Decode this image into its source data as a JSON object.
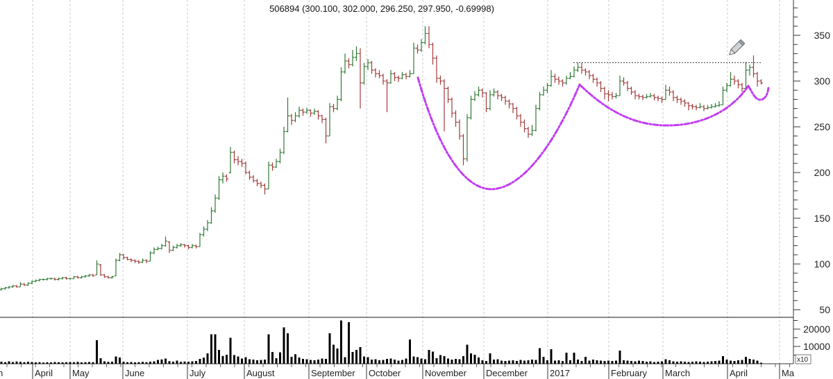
{
  "chart_data": {
    "type": "ohlc",
    "title": "506894 (300.100, 302.000, 296.250, 297.950, -0.69998)",
    "symbol": "506894",
    "last_bar": {
      "open": 300.1,
      "high": 302.0,
      "low": 296.25,
      "close": 297.95,
      "change": -0.69998
    },
    "ylim": [
      40,
      380
    ],
    "y_ticks": [
      50,
      100,
      150,
      200,
      250,
      300,
      350
    ],
    "volume_ylim": [
      0,
      26000
    ],
    "volume_ticks": [
      10000,
      20000
    ],
    "volume_multiplier_label": "x10",
    "x_ticks": [
      "h",
      "April",
      "May",
      "June",
      "July",
      "August",
      "September",
      "October",
      "November",
      "December",
      "2017",
      "February",
      "March",
      "April",
      "Ma"
    ],
    "grid": "vertical dashed at month starts",
    "colors": {
      "up": "#2f7a34",
      "down": "#a33a3a",
      "volume": "#000000",
      "annotation": "#c23df2"
    },
    "annotations": {
      "resistance_level": 320,
      "pattern": "cup and handle (hand drawn dash-dot curves)",
      "icon": "pencil-icon"
    },
    "bars": [
      [
        72,
        74,
        71,
        73
      ],
      [
        73,
        75,
        72,
        74
      ],
      [
        74,
        76,
        73,
        75
      ],
      [
        75,
        77,
        74,
        76
      ],
      [
        76,
        77,
        74,
        75
      ],
      [
        75,
        80,
        75,
        78
      ],
      [
        78,
        79,
        76,
        77
      ],
      [
        77,
        80,
        76,
        79
      ],
      [
        79,
        82,
        78,
        81
      ],
      [
        81,
        83,
        80,
        82
      ],
      [
        82,
        84,
        81,
        83
      ],
      [
        83,
        84,
        82,
        83
      ],
      [
        83,
        85,
        82,
        84
      ],
      [
        84,
        85,
        83,
        84
      ],
      [
        84,
        85,
        82,
        83
      ],
      [
        83,
        85,
        82,
        84
      ],
      [
        84,
        86,
        83,
        85
      ],
      [
        85,
        86,
        83,
        84
      ],
      [
        84,
        85,
        83,
        84
      ],
      [
        84,
        87,
        84,
        86
      ],
      [
        86,
        87,
        84,
        85
      ],
      [
        85,
        87,
        84,
        86
      ],
      [
        86,
        88,
        85,
        87
      ],
      [
        87,
        89,
        86,
        88
      ],
      [
        88,
        89,
        86,
        87
      ],
      [
        88,
        104,
        88,
        100
      ],
      [
        99,
        100,
        87,
        88
      ],
      [
        88,
        89,
        85,
        86
      ],
      [
        86,
        87,
        84,
        85
      ],
      [
        85,
        87,
        84,
        86
      ],
      [
        87,
        106,
        87,
        104
      ],
      [
        104,
        112,
        103,
        110
      ],
      [
        110,
        111,
        105,
        107
      ],
      [
        107,
        108,
        104,
        105
      ],
      [
        105,
        106,
        102,
        104
      ],
      [
        104,
        105,
        101,
        103
      ],
      [
        103,
        104,
        100,
        102
      ],
      [
        102,
        106,
        101,
        104
      ],
      [
        104,
        105,
        101,
        103
      ],
      [
        103,
        114,
        103,
        112
      ],
      [
        112,
        118,
        111,
        116
      ],
      [
        116,
        119,
        115,
        117
      ],
      [
        117,
        122,
        116,
        120
      ],
      [
        120,
        130,
        119,
        125
      ],
      [
        124,
        125,
        112,
        115
      ],
      [
        115,
        120,
        114,
        118
      ],
      [
        118,
        122,
        117,
        120
      ],
      [
        120,
        123,
        119,
        121
      ],
      [
        121,
        122,
        118,
        120
      ],
      [
        120,
        121,
        116,
        118
      ],
      [
        118,
        122,
        117,
        120
      ],
      [
        120,
        121,
        117,
        119
      ],
      [
        119,
        134,
        119,
        132
      ],
      [
        132,
        141,
        130,
        138
      ],
      [
        138,
        148,
        136,
        145
      ],
      [
        145,
        162,
        144,
        158
      ],
      [
        158,
        176,
        156,
        172
      ],
      [
        172,
        196,
        170,
        192
      ],
      [
        192,
        200,
        188,
        196
      ],
      [
        196,
        198,
        190,
        193
      ],
      [
        200,
        228,
        199,
        222
      ],
      [
        222,
        224,
        210,
        214
      ],
      [
        214,
        218,
        208,
        212
      ],
      [
        212,
        215,
        206,
        210
      ],
      [
        210,
        212,
        198,
        200
      ],
      [
        200,
        202,
        192,
        195
      ],
      [
        195,
        197,
        189,
        191
      ],
      [
        191,
        193,
        185,
        188
      ],
      [
        188,
        190,
        183,
        186
      ],
      [
        186,
        188,
        176,
        182
      ],
      [
        182,
        212,
        182,
        208
      ],
      [
        208,
        211,
        202,
        206
      ],
      [
        206,
        215,
        205,
        212
      ],
      [
        212,
        226,
        210,
        222
      ],
      [
        222,
        250,
        220,
        245
      ],
      [
        245,
        282,
        244,
        262
      ],
      [
        262,
        264,
        252,
        257
      ],
      [
        257,
        266,
        255,
        262
      ],
      [
        262,
        272,
        260,
        268
      ],
      [
        268,
        270,
        262,
        266
      ],
      [
        266,
        271,
        264,
        268
      ],
      [
        268,
        269,
        261,
        265
      ],
      [
        265,
        270,
        263,
        267
      ],
      [
        267,
        268,
        258,
        262
      ],
      [
        262,
        263,
        254,
        258
      ],
      [
        258,
        260,
        232,
        240
      ],
      [
        240,
        276,
        240,
        272
      ],
      [
        272,
        275,
        266,
        270
      ],
      [
        270,
        284,
        268,
        280
      ],
      [
        280,
        315,
        278,
        310
      ],
      [
        310,
        330,
        308,
        322
      ],
      [
        322,
        325,
        314,
        318
      ],
      [
        318,
        334,
        316,
        326
      ],
      [
        326,
        338,
        322,
        330
      ],
      [
        330,
        336,
        270,
        298
      ],
      [
        298,
        320,
        296,
        316
      ],
      [
        316,
        324,
        312,
        320
      ],
      [
        320,
        322,
        308,
        312
      ],
      [
        312,
        314,
        304,
        308
      ],
      [
        308,
        312,
        303,
        306
      ],
      [
        306,
        308,
        296,
        300
      ],
      [
        300,
        302,
        266,
        298
      ],
      [
        298,
        312,
        297,
        308
      ],
      [
        308,
        310,
        300,
        304
      ],
      [
        304,
        306,
        299,
        303
      ],
      [
        303,
        310,
        302,
        307
      ],
      [
        307,
        309,
        302,
        305
      ],
      [
        305,
        312,
        304,
        308
      ],
      [
        308,
        342,
        308,
        336
      ],
      [
        336,
        340,
        330,
        334
      ],
      [
        334,
        346,
        332,
        342
      ],
      [
        342,
        360,
        340,
        352
      ],
      [
        352,
        360,
        336,
        340
      ],
      [
        340,
        342,
        318,
        325
      ],
      [
        325,
        328,
        298,
        303
      ],
      [
        303,
        306,
        296,
        300
      ],
      [
        300,
        302,
        245,
        292
      ],
      [
        292,
        294,
        276,
        280
      ],
      [
        280,
        282,
        260,
        265
      ],
      [
        265,
        268,
        250,
        255
      ],
      [
        255,
        258,
        236,
        240
      ],
      [
        240,
        242,
        208,
        215
      ],
      [
        215,
        264,
        212,
        260
      ],
      [
        260,
        284,
        258,
        280
      ],
      [
        280,
        289,
        278,
        285
      ],
      [
        285,
        294,
        283,
        290
      ],
      [
        290,
        292,
        282,
        287
      ],
      [
        287,
        288,
        266,
        270
      ],
      [
        270,
        290,
        268,
        285
      ],
      [
        285,
        292,
        283,
        288
      ],
      [
        288,
        290,
        280,
        284
      ],
      [
        284,
        286,
        278,
        282
      ],
      [
        282,
        284,
        274,
        278
      ],
      [
        278,
        280,
        270,
        275
      ],
      [
        275,
        276,
        265,
        270
      ],
      [
        270,
        272,
        258,
        262
      ],
      [
        262,
        264,
        250,
        255
      ],
      [
        255,
        258,
        244,
        248
      ],
      [
        248,
        250,
        238,
        242
      ],
      [
        242,
        252,
        240,
        246
      ],
      [
        246,
        274,
        245,
        270
      ],
      [
        270,
        288,
        268,
        285
      ],
      [
        285,
        294,
        284,
        290
      ],
      [
        290,
        298,
        287,
        295
      ],
      [
        295,
        312,
        294,
        305
      ],
      [
        305,
        308,
        298,
        302
      ],
      [
        302,
        305,
        296,
        300
      ],
      [
        300,
        302,
        294,
        298
      ],
      [
        298,
        306,
        296,
        303
      ],
      [
        303,
        310,
        302,
        305
      ],
      [
        305,
        316,
        304,
        312
      ],
      [
        312,
        320,
        310,
        315
      ],
      [
        315,
        320,
        308,
        312
      ],
      [
        312,
        314,
        306,
        310
      ],
      [
        310,
        312,
        302,
        306
      ],
      [
        306,
        308,
        298,
        302
      ],
      [
        302,
        304,
        294,
        298
      ],
      [
        298,
        300,
        288,
        292
      ],
      [
        292,
        294,
        280,
        286
      ],
      [
        286,
        290,
        278,
        285
      ],
      [
        285,
        288,
        280,
        283
      ],
      [
        283,
        287,
        281,
        284
      ],
      [
        284,
        306,
        284,
        300
      ],
      [
        300,
        304,
        295,
        298
      ],
      [
        298,
        300,
        289,
        292
      ],
      [
        292,
        294,
        285,
        288
      ],
      [
        288,
        290,
        280,
        284
      ],
      [
        284,
        286,
        280,
        283
      ],
      [
        283,
        285,
        279,
        282
      ],
      [
        282,
        286,
        281,
        283
      ],
      [
        283,
        287,
        282,
        284
      ],
      [
        284,
        286,
        279,
        282
      ],
      [
        282,
        284,
        278,
        281
      ],
      [
        281,
        283,
        276,
        280
      ],
      [
        280,
        296,
        280,
        290
      ],
      [
        290,
        294,
        284,
        288
      ],
      [
        288,
        290,
        278,
        282
      ],
      [
        282,
        284,
        276,
        280
      ],
      [
        280,
        282,
        274,
        278
      ],
      [
        278,
        280,
        272,
        276
      ],
      [
        276,
        277,
        268,
        273
      ],
      [
        273,
        275,
        269,
        272
      ],
      [
        272,
        274,
        268,
        271
      ],
      [
        271,
        276,
        270,
        272
      ],
      [
        272,
        274,
        267,
        270
      ],
      [
        270,
        274,
        269,
        271
      ],
      [
        271,
        275,
        270,
        272
      ],
      [
        272,
        276,
        271,
        273
      ],
      [
        273,
        278,
        272,
        274
      ],
      [
        274,
        294,
        274,
        290
      ],
      [
        290,
        298,
        288,
        295
      ],
      [
        295,
        310,
        294,
        302
      ],
      [
        302,
        306,
        296,
        300
      ],
      [
        300,
        302,
        292,
        296
      ],
      [
        296,
        298,
        288,
        292
      ],
      [
        292,
        321,
        291,
        312
      ],
      [
        312,
        318,
        306,
        315
      ],
      [
        315,
        328,
        304,
        308
      ],
      [
        308,
        310,
        294,
        300
      ],
      [
        300.1,
        302,
        296.25,
        297.95
      ]
    ],
    "volume": [
      1200,
      900,
      1400,
      1000,
      1300,
      1100,
      900,
      1200,
      1000,
      800,
      900,
      700,
      900,
      800,
      1000,
      900,
      800,
      900,
      1000,
      900,
      1100,
      800,
      900,
      1000,
      900,
      13600,
      3200,
      1400,
      1100,
      1200,
      4200,
      3600,
      1200,
      900,
      1000,
      800,
      900,
      1100,
      900,
      1200,
      1400,
      2200,
      2500,
      3000,
      1500,
      1200,
      1800,
      1100,
      1300,
      1200,
      1400,
      1600,
      2800,
      3500,
      6000,
      17000,
      17000,
      8000,
      4500,
      5200,
      15000,
      5000,
      4200,
      3000,
      3800,
      2600,
      2400,
      2000,
      2200,
      2400,
      17000,
      6800,
      3200,
      6600,
      21000,
      17600,
      4000,
      5500,
      3600,
      2800,
      2600,
      2200,
      2000,
      2400,
      3000,
      2800,
      17600,
      11000,
      8800,
      25000,
      3800,
      24000,
      6800,
      8000,
      9600,
      4200,
      3800,
      2400,
      2600,
      2000,
      2200,
      2800,
      3000,
      2400,
      1800,
      2200,
      3000,
      14000,
      4200,
      3800,
      3000,
      2600,
      8000,
      7000,
      3200,
      5000,
      4400,
      3000,
      2400,
      2800,
      2600,
      4400,
      11000,
      6000,
      5200,
      3600,
      2000,
      1600,
      6000,
      2400,
      2600,
      1800,
      1600,
      1800,
      2000,
      1600,
      2200,
      1800,
      2000,
      2400,
      2200,
      9000,
      4000,
      2000,
      8400,
      1800,
      2000,
      1600,
      6400,
      2000,
      6400,
      2400,
      1600,
      4000,
      1800,
      2400,
      2000,
      1800,
      1600,
      1800,
      1600,
      1800,
      7600,
      2000,
      1800,
      1600,
      1400,
      1800,
      1600,
      1200,
      1400,
      1000,
      1200,
      1400,
      2600,
      2000,
      1400,
      1200,
      1400,
      1200,
      1000,
      1200,
      1400,
      1200,
      1000,
      1200,
      1400,
      1600,
      1800,
      4400,
      2400,
      1800,
      1600,
      2000,
      2200,
      4000,
      2800,
      2400,
      1800,
      600
    ]
  }
}
